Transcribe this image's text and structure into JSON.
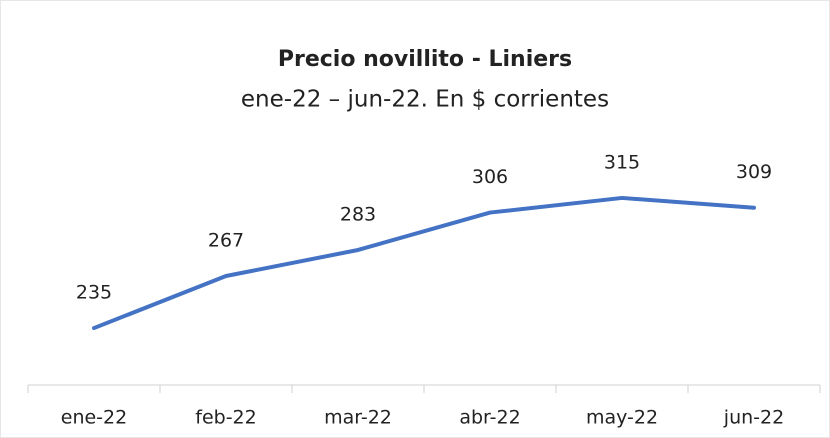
{
  "chart_data": {
    "type": "line",
    "title": "Precio novillito - Liniers",
    "subtitle": "ene-22 – jun-22. En $ corrientes",
    "categories": [
      "ene-22",
      "feb-22",
      "mar-22",
      "abr-22",
      "may-22",
      "jun-22"
    ],
    "values": [
      235,
      267,
      283,
      306,
      315,
      309
    ],
    "color": "#4472c4",
    "ylim": [
      200,
      350
    ]
  }
}
